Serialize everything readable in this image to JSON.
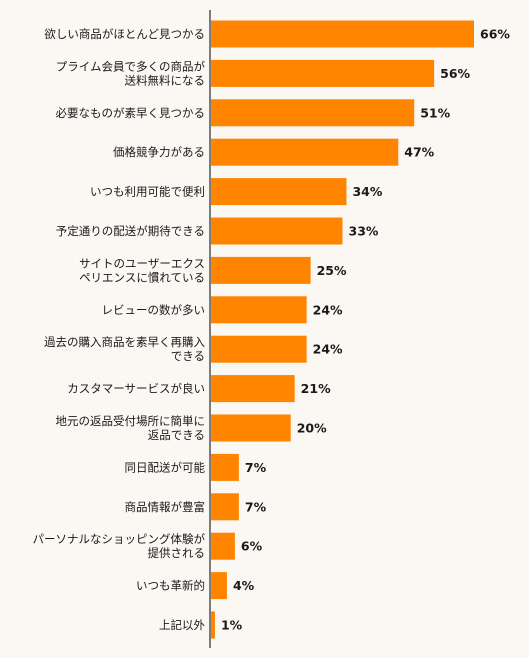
{
  "colors": {
    "bar": "#ff8500",
    "axis": "#2a2a2a",
    "text": "#1a1a1a",
    "background": "#fbf7f3"
  },
  "chart_data": {
    "type": "bar",
    "orientation": "horizontal",
    "categories": [
      [
        "欲しい商品がほとんど見つかる"
      ],
      [
        "プライム会員で多くの商品が",
        "送料無料になる"
      ],
      [
        "必要なものが素早く見つかる"
      ],
      [
        "価格競争力がある"
      ],
      [
        "いつも利用可能で便利"
      ],
      [
        "予定通りの配送が期待できる"
      ],
      [
        "サイトのユーザーエクス",
        "ペリエンスに慣れている"
      ],
      [
        "レビューの数が多い"
      ],
      [
        "過去の購入商品を素早く再購入",
        "できる"
      ],
      [
        "カスタマーサービスが良い"
      ],
      [
        "地元の返品受付場所に簡単に",
        "返品できる"
      ],
      [
        "同日配送が可能"
      ],
      [
        "商品情報が豊富"
      ],
      [
        "パーソナルなショッピング体験が",
        "提供される"
      ],
      [
        "いつも革新的"
      ],
      [
        "上記以外"
      ]
    ],
    "values": [
      66,
      56,
      51,
      47,
      34,
      33,
      25,
      24,
      24,
      21,
      20,
      7,
      7,
      6,
      4,
      1
    ],
    "value_labels": [
      "66%",
      "56%",
      "51%",
      "47%",
      "34%",
      "33%",
      "25%",
      "24%",
      "24%",
      "21%",
      "20%",
      "7%",
      "7%",
      "6%",
      "4%",
      "1%"
    ],
    "xlim": [
      0,
      66
    ],
    "grid": false,
    "legend": "none"
  }
}
